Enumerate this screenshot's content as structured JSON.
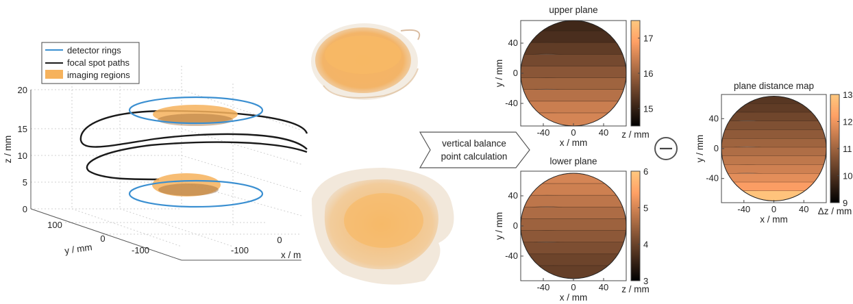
{
  "legend": {
    "entries": [
      {
        "label": "detector rings",
        "color": "#3a8fd1"
      },
      {
        "label": "focal spot paths",
        "color": "#1a1a1a"
      },
      {
        "label": "imaging regions",
        "color": "#f6b25c"
      }
    ]
  },
  "plot3d": {
    "zlabel": "z / mm",
    "ylabel": "y / mm",
    "xlabel": "x / m",
    "zticks": [
      "0",
      "5",
      "10",
      "15",
      "20"
    ],
    "yticks": [
      "100",
      "0",
      "-100"
    ],
    "xticks": [
      "-100",
      "0"
    ]
  },
  "arrow": {
    "line1": "vertical balance",
    "line2": "point calculation"
  },
  "minus_symbol": "−",
  "colors": {
    "copper_dark": "#000000",
    "copper_light": "#ffc87f",
    "imaging_region": "#f6b25c",
    "detector_ring": "#3a8fd1"
  },
  "chart_data": [
    {
      "type": "heatmap",
      "title": "upper plane",
      "xlabel": "x / mm",
      "ylabel": "y / mm",
      "colorbar_label": "z / mm",
      "colormap": "copper",
      "xticks": [
        "-40",
        "0",
        "40"
      ],
      "yticks": [
        "40",
        "0",
        "-40"
      ],
      "clim": [
        14.5,
        17.5
      ],
      "colorbar_ticks": [
        "17",
        "16",
        "15"
      ],
      "levels": [
        15.1,
        15.3,
        15.5,
        15.7,
        15.9,
        16.1,
        16.3,
        16.5
      ]
    },
    {
      "type": "heatmap",
      "title": "lower plane",
      "xlabel": "x / mm",
      "ylabel": "y / mm",
      "colorbar_label": "z / mm",
      "colormap": "copper",
      "xticks": [
        "-40",
        "0",
        "40"
      ],
      "yticks": [
        "40",
        "0",
        "-40"
      ],
      "clim": [
        3,
        6
      ],
      "colorbar_ticks": [
        "6",
        "5",
        "4",
        "3"
      ],
      "levels": [
        5.0,
        4.85,
        4.7,
        4.55,
        4.4,
        4.25,
        4.1,
        3.95
      ]
    },
    {
      "type": "heatmap",
      "title": "plane distance map",
      "xlabel": "x / mm",
      "ylabel": "y / mm",
      "colorbar_label": "Δz / mm",
      "colormap": "copper",
      "xticks": [
        "-40",
        "0",
        "40"
      ],
      "yticks": [
        "40",
        "0",
        "-40"
      ],
      "clim": [
        9,
        13
      ],
      "colorbar_ticks": [
        "13",
        "12",
        "11",
        "10",
        "9"
      ],
      "levels": [
        10.1,
        10.3,
        10.5,
        10.7,
        10.9,
        11.1,
        11.3,
        11.5,
        11.7,
        12.0,
        12.3
      ]
    }
  ]
}
